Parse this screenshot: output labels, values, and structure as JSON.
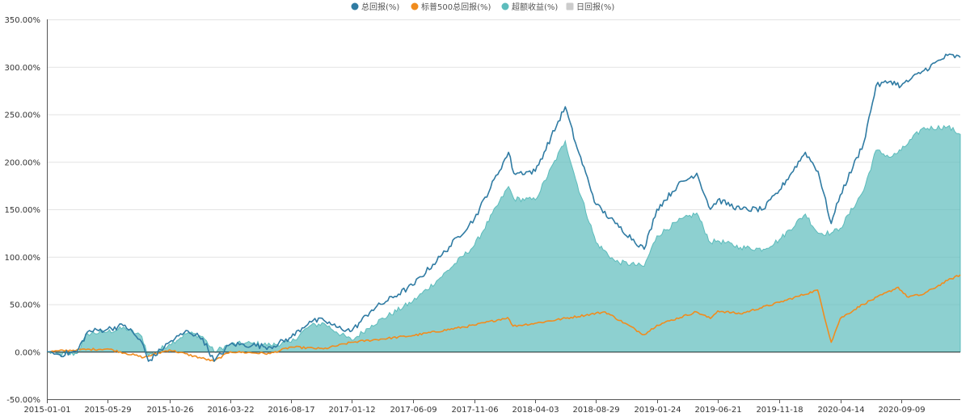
{
  "chart_data": {
    "type": "line",
    "legend": [
      {
        "key": "total",
        "label": "总回报(%)",
        "color": "#2f7ba3",
        "marker": "circle",
        "active": true
      },
      {
        "key": "sp500",
        "label": "标普500总回报(%)",
        "color": "#f08c1e",
        "marker": "circle",
        "active": true
      },
      {
        "key": "excess",
        "label": "超额收益(%)",
        "color": "#5dbcbc",
        "marker": "circle",
        "active": true
      },
      {
        "key": "daily",
        "label": "日回报(%)",
        "color": "#cccccc",
        "marker": "square",
        "active": false
      }
    ],
    "yticks": [
      "350.00%",
      "300.00%",
      "250.00%",
      "200.00%",
      "150.00%",
      "100.00%",
      "50.00%",
      "0.00%",
      "-50.00%"
    ],
    "ylim": [
      -50,
      350
    ],
    "xticks": [
      "2015-01-01",
      "2015-05-29",
      "2015-10-26",
      "2016-03-22",
      "2016-08-17",
      "2017-01-12",
      "2017-06-09",
      "2017-11-06",
      "2018-04-03",
      "2018-08-29",
      "2019-01-24",
      "2019-06-21",
      "2019-11-18",
      "2020-04-14",
      "2020-09-09"
    ],
    "x_range": [
      "2015-01-01",
      "2021-01-31"
    ],
    "series": [
      {
        "key": "total",
        "name": "总回报(%)",
        "points": [
          [
            "2015-01-01",
            0
          ],
          [
            "2015-02-01",
            -3
          ],
          [
            "2015-03-15",
            0
          ],
          [
            "2015-04-10",
            21
          ],
          [
            "2015-05-29",
            24
          ],
          [
            "2015-07-10",
            28
          ],
          [
            "2015-08-20",
            10
          ],
          [
            "2015-09-05",
            -10
          ],
          [
            "2015-10-26",
            10
          ],
          [
            "2015-12-10",
            22
          ],
          [
            "2016-01-15",
            14
          ],
          [
            "2016-02-12",
            -10
          ],
          [
            "2016-03-22",
            8
          ],
          [
            "2016-05-15",
            7
          ],
          [
            "2016-06-28",
            5
          ],
          [
            "2016-08-17",
            15
          ],
          [
            "2016-10-01",
            32
          ],
          [
            "2016-11-05",
            33
          ],
          [
            "2016-12-05",
            26
          ],
          [
            "2017-01-12",
            22
          ],
          [
            "2017-03-01",
            44
          ],
          [
            "2017-06-09",
            70
          ],
          [
            "2017-08-15",
            100
          ],
          [
            "2017-11-06",
            140
          ],
          [
            "2018-01-28",
            210
          ],
          [
            "2018-02-10",
            188
          ],
          [
            "2018-04-03",
            190
          ],
          [
            "2018-06-15",
            258
          ],
          [
            "2018-07-10",
            220
          ],
          [
            "2018-08-29",
            155
          ],
          [
            "2018-10-15",
            135
          ],
          [
            "2018-12-24",
            108
          ],
          [
            "2019-01-24",
            150
          ],
          [
            "2019-03-15",
            175
          ],
          [
            "2019-05-01",
            188
          ],
          [
            "2019-06-03",
            150
          ],
          [
            "2019-06-21",
            160
          ],
          [
            "2019-08-15",
            150
          ],
          [
            "2019-10-10",
            150
          ],
          [
            "2019-11-18",
            170
          ],
          [
            "2020-01-20",
            210
          ],
          [
            "2020-02-20",
            190
          ],
          [
            "2020-03-23",
            135
          ],
          [
            "2020-04-14",
            165
          ],
          [
            "2020-06-10",
            220
          ],
          [
            "2020-07-10",
            280
          ],
          [
            "2020-08-15",
            285
          ],
          [
            "2020-09-09",
            280
          ],
          [
            "2020-10-30",
            295
          ],
          [
            "2020-12-31",
            312
          ],
          [
            "2021-01-31",
            310
          ]
        ]
      },
      {
        "key": "sp500",
        "name": "标普500总回报(%)",
        "points": [
          [
            "2015-01-01",
            0
          ],
          [
            "2015-03-15",
            2
          ],
          [
            "2015-05-29",
            3
          ],
          [
            "2015-08-25",
            -6
          ],
          [
            "2015-10-26",
            2
          ],
          [
            "2016-02-11",
            -10
          ],
          [
            "2016-03-22",
            0
          ],
          [
            "2016-06-27",
            -2
          ],
          [
            "2016-08-17",
            5
          ],
          [
            "2016-11-04",
            3
          ],
          [
            "2017-01-12",
            10
          ],
          [
            "2017-06-09",
            17
          ],
          [
            "2017-11-06",
            28
          ],
          [
            "2018-01-26",
            36
          ],
          [
            "2018-02-08",
            27
          ],
          [
            "2018-04-03",
            30
          ],
          [
            "2018-09-20",
            42
          ],
          [
            "2018-12-24",
            18
          ],
          [
            "2019-01-24",
            28
          ],
          [
            "2019-04-30",
            42
          ],
          [
            "2019-06-03",
            35
          ],
          [
            "2019-06-21",
            43
          ],
          [
            "2019-08-15",
            40
          ],
          [
            "2019-11-18",
            52
          ],
          [
            "2020-02-19",
            65
          ],
          [
            "2020-03-23",
            10
          ],
          [
            "2020-04-14",
            35
          ],
          [
            "2020-06-08",
            50
          ],
          [
            "2020-09-02",
            68
          ],
          [
            "2020-09-23",
            58
          ],
          [
            "2020-10-30",
            60
          ],
          [
            "2020-12-31",
            75
          ],
          [
            "2021-01-31",
            81
          ]
        ]
      },
      {
        "key": "excess",
        "name": "超额收益(%)",
        "points": [
          [
            "2015-01-01",
            0
          ],
          [
            "2015-02-01",
            -3
          ],
          [
            "2015-03-15",
            -2
          ],
          [
            "2015-04-10",
            19
          ],
          [
            "2015-05-29",
            21
          ],
          [
            "2015-07-10",
            25
          ],
          [
            "2015-08-20",
            16
          ],
          [
            "2015-09-05",
            -4
          ],
          [
            "2015-10-26",
            8
          ],
          [
            "2015-12-10",
            20
          ],
          [
            "2016-01-15",
            16
          ],
          [
            "2016-02-12",
            0
          ],
          [
            "2016-03-22",
            8
          ],
          [
            "2016-05-15",
            9
          ],
          [
            "2016-06-28",
            7
          ],
          [
            "2016-08-17",
            10
          ],
          [
            "2016-10-01",
            27
          ],
          [
            "2016-11-05",
            30
          ],
          [
            "2016-12-05",
            21
          ],
          [
            "2017-01-12",
            12
          ],
          [
            "2017-03-01",
            28
          ],
          [
            "2017-06-09",
            53
          ],
          [
            "2017-08-15",
            78
          ],
          [
            "2017-11-06",
            112
          ],
          [
            "2018-01-28",
            174
          ],
          [
            "2018-02-10",
            161
          ],
          [
            "2018-04-03",
            160
          ],
          [
            "2018-06-15",
            222
          ],
          [
            "2018-07-10",
            182
          ],
          [
            "2018-08-29",
            115
          ],
          [
            "2018-10-15",
            95
          ],
          [
            "2018-12-24",
            90
          ],
          [
            "2019-01-24",
            122
          ],
          [
            "2019-03-15",
            137
          ],
          [
            "2019-05-01",
            146
          ],
          [
            "2019-06-03",
            115
          ],
          [
            "2019-06-21",
            117
          ],
          [
            "2019-08-15",
            110
          ],
          [
            "2019-10-10",
            108
          ],
          [
            "2019-11-18",
            118
          ],
          [
            "2020-01-20",
            145
          ],
          [
            "2020-02-20",
            125
          ],
          [
            "2020-03-23",
            125
          ],
          [
            "2020-04-14",
            130
          ],
          [
            "2020-06-10",
            170
          ],
          [
            "2020-07-10",
            212
          ],
          [
            "2020-08-15",
            205
          ],
          [
            "2020-09-09",
            212
          ],
          [
            "2020-10-30",
            235
          ],
          [
            "2020-12-31",
            237
          ],
          [
            "2021-01-31",
            229
          ]
        ]
      }
    ],
    "grid": "horizontal"
  }
}
